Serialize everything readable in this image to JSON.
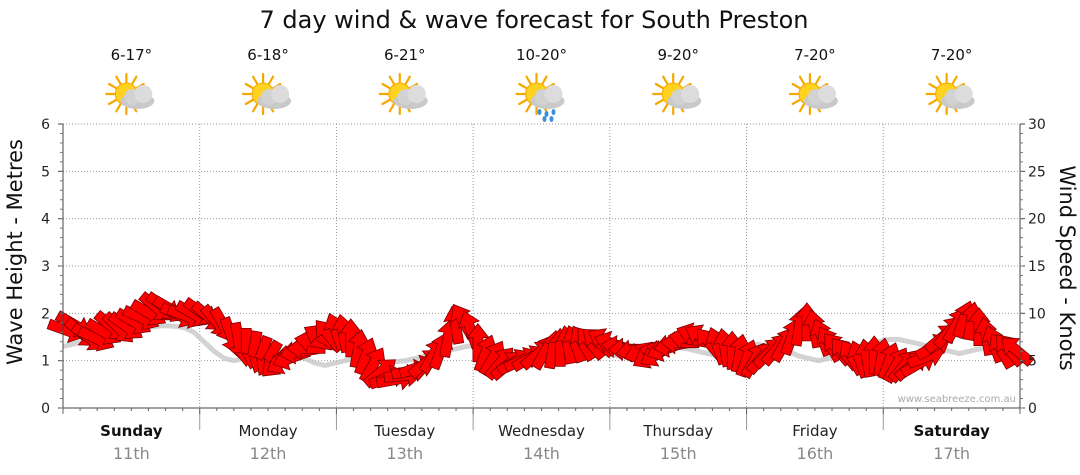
{
  "colors": {
    "arrow_fill": "#ff0000",
    "arrow_stroke": "#7a0000",
    "wave_line": "#c8c8c8",
    "grid": "#9a9a9a",
    "axis": "#444444"
  },
  "chart_data": {
    "type": "wind-wave-forecast",
    "title": "7 day wind & wave forecast for South Preston",
    "ylabel_left": "Wave Height - Metres",
    "ylabel_right": "Wind Speed - Knots",
    "ylim_left": [
      0,
      6
    ],
    "ylim_right": [
      0,
      30
    ],
    "yticks_left": [
      "0",
      "1",
      "2",
      "3",
      "4",
      "5",
      "6"
    ],
    "yticks_right": [
      "0",
      "5",
      "10",
      "15",
      "20",
      "25",
      "30"
    ],
    "watermark": "www.seabreeze.com.au",
    "days": [
      {
        "name": "Sunday",
        "date": "11th",
        "temp": "6-17°",
        "icon": "partly-cloudy-icon",
        "bold": true
      },
      {
        "name": "Monday",
        "date": "12th",
        "temp": "6-18°",
        "icon": "partly-cloudy-icon",
        "bold": false
      },
      {
        "name": "Tuesday",
        "date": "13th",
        "temp": "6-21°",
        "icon": "partly-cloudy-icon",
        "bold": false
      },
      {
        "name": "Wednesday",
        "date": "14th",
        "temp": "10-20°",
        "icon": "showers-icon",
        "bold": false
      },
      {
        "name": "Thursday",
        "date": "15th",
        "temp": "9-20°",
        "icon": "partly-cloudy-icon",
        "bold": false
      },
      {
        "name": "Friday",
        "date": "16th",
        "temp": "7-20°",
        "icon": "partly-cloudy-icon",
        "bold": false
      },
      {
        "name": "Saturday",
        "date": "17th",
        "temp": "7-20°",
        "icon": "partly-cloudy-icon",
        "bold": true
      }
    ],
    "wind_knots": [
      8.2,
      8.8,
      7.9,
      7.4,
      7.3,
      8.0,
      8.6,
      8.4,
      8.6,
      9.1,
      9.5,
      10.0,
      10.6,
      10.7,
      10.4,
      9.8,
      9.7,
      9.9,
      10.1,
      9.6,
      9.1,
      8.7,
      7.6,
      7.0,
      6.4,
      6.1,
      5.6,
      5.2,
      4.8,
      4.9,
      5.3,
      5.9,
      6.3,
      7.0,
      7.5,
      7.7,
      8.1,
      7.9,
      7.4,
      6.3,
      5.5,
      4.6,
      3.8,
      3.2,
      3.0,
      3.4,
      3.9,
      4.3,
      4.8,
      5.6,
      6.1,
      7.4,
      8.8,
      9.2,
      8.3,
      6.9,
      5.8,
      5.3,
      4.8,
      4.6,
      4.9,
      5.1,
      5.3,
      5.7,
      6.0,
      6.2,
      6.4,
      6.7,
      6.8,
      6.9,
      6.9,
      7.0,
      7.1,
      6.8,
      6.4,
      6.2,
      6.1,
      5.9,
      5.5,
      5.7,
      6.2,
      6.6,
      6.9,
      7.3,
      7.7,
      7.5,
      6.8,
      6.6,
      6.4,
      6.1,
      5.8,
      5.3,
      5.1,
      5.4,
      5.9,
      6.3,
      6.8,
      7.6,
      8.6,
      9.1,
      8.4,
      7.5,
      6.8,
      6.3,
      5.8,
      5.4,
      5.2,
      5.3,
      5.6,
      5.4,
      5.0,
      4.6,
      4.5,
      4.5,
      4.7,
      5.4,
      6.5,
      7.4,
      8.1,
      8.8,
      9.4,
      9.2,
      8.6,
      7.6,
      6.8,
      6.1,
      6.2,
      6.1
    ],
    "wind_direction_deg": [
      20,
      30,
      40,
      35,
      25,
      30,
      40,
      45,
      35,
      30,
      25,
      30,
      40,
      35,
      30,
      25,
      20,
      30,
      35,
      40,
      50,
      60,
      70,
      80,
      90,
      100,
      110,
      120,
      135,
      150,
      160,
      170,
      180,
      190,
      210,
      230,
      250,
      260,
      270,
      280,
      290,
      300,
      320,
      340,
      350,
      355,
      350,
      340,
      320,
      300,
      290,
      280,
      260,
      240,
      250,
      270,
      290,
      300,
      310,
      320,
      330,
      335,
      330,
      320,
      300,
      280,
      270,
      260,
      250,
      240,
      230,
      220,
      210,
      200,
      190,
      180,
      170,
      160,
      150,
      150,
      160,
      170,
      180,
      190,
      200,
      210,
      230,
      250,
      260,
      270,
      280,
      290,
      300,
      310,
      315,
      310,
      300,
      290,
      280,
      270,
      260,
      250,
      240,
      230,
      230,
      240,
      250,
      260,
      270,
      280,
      290,
      300,
      310,
      320,
      330,
      340,
      330,
      320,
      310,
      300,
      290,
      280,
      270,
      260,
      250,
      240,
      230,
      220
    ],
    "wave_height_m": [
      1.3,
      1.35,
      1.4,
      1.45,
      1.5,
      1.55,
      1.6,
      1.65,
      1.7,
      1.72,
      1.74,
      1.73,
      1.7,
      1.6,
      1.4,
      1.2,
      1.05,
      1.0,
      1.05,
      1.1,
      1.15,
      1.2,
      1.2,
      1.15,
      1.05,
      0.95,
      0.9,
      0.95,
      1.0,
      1.05,
      1.1,
      1.0,
      0.95,
      0.98,
      1.0,
      1.05,
      1.1,
      1.15,
      1.2,
      1.25,
      1.3,
      1.32,
      1.3,
      1.25,
      1.2,
      1.15,
      1.1,
      1.05,
      1.1,
      1.15,
      1.2,
      1.22,
      1.2,
      1.18,
      1.15,
      1.1,
      1.1,
      1.15,
      1.2,
      1.25,
      1.3,
      1.28,
      1.25,
      1.2,
      1.15,
      1.1,
      1.15,
      1.2,
      1.3,
      1.35,
      1.3,
      1.25,
      1.2,
      1.1,
      1.05,
      1.0,
      1.05,
      1.1,
      1.2,
      1.3,
      1.35,
      1.4,
      1.45,
      1.45,
      1.4,
      1.35,
      1.3,
      1.25,
      1.2,
      1.15,
      1.2,
      1.25,
      1.25,
      1.2,
      1.15,
      1.1
    ]
  }
}
